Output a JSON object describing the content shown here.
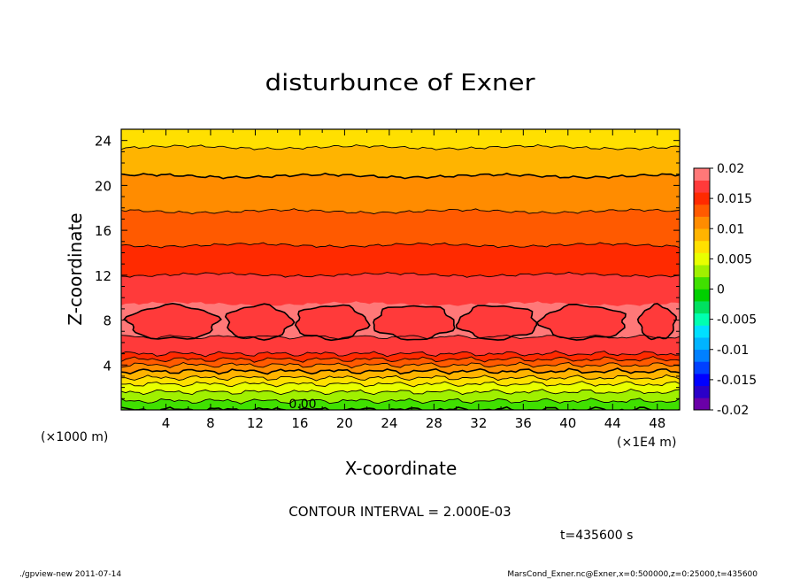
{
  "chart_data": {
    "type": "heatmap",
    "title": "disturbunce of Exner",
    "xlabel": "X-coordinate",
    "ylabel": "Z-coordinate",
    "x_unit": "(×1000 m)",
    "x_multiplier": "(×1E4 m)",
    "xlim": [
      0,
      50
    ],
    "ylim": [
      0,
      25
    ],
    "x_ticks": [
      "4",
      "8",
      "12",
      "16",
      "20",
      "24",
      "28",
      "32",
      "36",
      "40",
      "44",
      "48"
    ],
    "y_ticks": [
      "4",
      "8",
      "12",
      "16",
      "20",
      "24"
    ],
    "contour_label": "0.00",
    "contour_interval_text": "CONTOUR INTERVAL = 2.000E-03",
    "time_text": "t=435600 s",
    "footer_left": "./gpview-new   2011-07-14",
    "footer_right": "MarsCond_Exner.nc@Exner,x=0:500000,z=0:25000,t=435600",
    "colorbar": {
      "labels": [
        "0.02",
        "0.015",
        "0.01",
        "0.005",
        "0",
        "-0.005",
        "-0.01",
        "-0.015",
        "-0.02"
      ],
      "levels": [
        -0.02,
        -0.018,
        -0.016,
        -0.014,
        -0.012,
        -0.01,
        -0.008,
        -0.006,
        -0.004,
        -0.002,
        0,
        0.002,
        0.004,
        0.006,
        0.008,
        0.01,
        0.012,
        0.014,
        0.016,
        0.018,
        0.02
      ],
      "colors": [
        "#6a00a8",
        "#2a00c8",
        "#0000ff",
        "#0040ff",
        "#0080ff",
        "#00b4ff",
        "#00e0ff",
        "#00ffb0",
        "#00e060",
        "#00d000",
        "#40e000",
        "#a0f000",
        "#e8ff00",
        "#ffe000",
        "#ffb400",
        "#ff8c00",
        "#ff5a00",
        "#ff2a00",
        "#ff3a3a",
        "#ff7878"
      ]
    },
    "profile": {
      "z": [
        0,
        1,
        2,
        3,
        4,
        5,
        6,
        7,
        8,
        9,
        10,
        11,
        12,
        14,
        16,
        18,
        20,
        22,
        23,
        24,
        25
      ],
      "value": [
        0.0,
        0.0025,
        0.005,
        0.0085,
        0.012,
        0.016,
        0.0175,
        0.0185,
        0.019,
        0.0184,
        0.0175,
        0.0167,
        0.016,
        0.0145,
        0.013,
        0.0118,
        0.0105,
        0.0093,
        0.0083,
        0.0075,
        0.0072
      ]
    }
  }
}
